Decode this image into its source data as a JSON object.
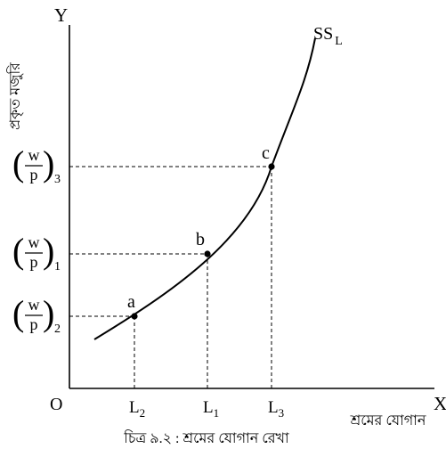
{
  "axes": {
    "origin": "O",
    "x_letter": "X",
    "y_letter": "Y",
    "y_title": "প্রকৃত মজুরি",
    "x_title": "শ্রমের যোগান"
  },
  "curve_label": {
    "main": "SS",
    "sub": "L"
  },
  "points": [
    {
      "name": "a",
      "x_label": "L",
      "x_sub": "2",
      "y_num": "w",
      "y_den": "p",
      "y_sub": "2"
    },
    {
      "name": "b",
      "x_label": "L",
      "x_sub": "1",
      "y_num": "w",
      "y_den": "p",
      "y_sub": "1"
    },
    {
      "name": "c",
      "x_label": "L",
      "x_sub": "3",
      "y_num": "w",
      "y_den": "p",
      "y_sub": "3"
    }
  ],
  "caption": "চিত্র ৯.২ : শ্রমের যোগান রেখা"
}
